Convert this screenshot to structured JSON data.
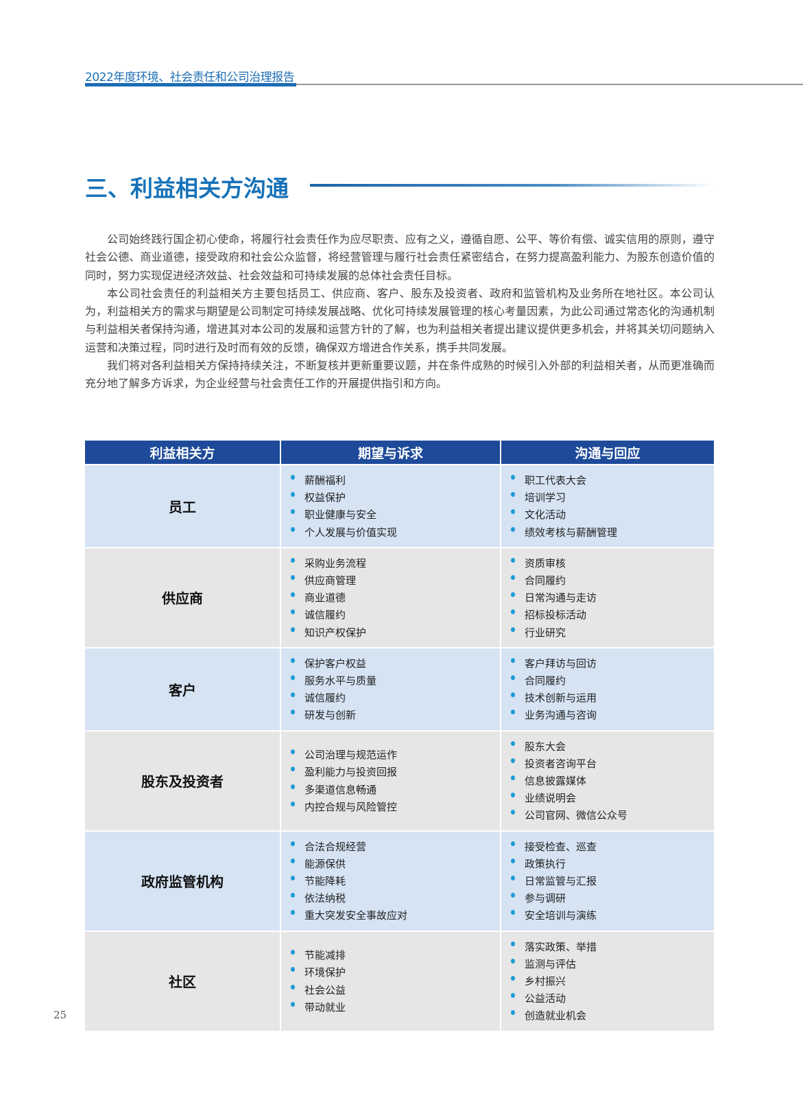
{
  "header": {
    "report_title": "2022年度环境、社会责任和公司治理报告"
  },
  "section_title": "三、利益相关方沟通",
  "paragraphs": [
    "公司始终践行国企初心使命，将履行社会责任作为应尽职责、应有之义，遵循自愿、公平、等价有偿、诚实信用的原则，遵守社会公德、商业道德，接受政府和社会公众监督，将经营管理与履行社会责任紧密结合，在努力提高盈利能力、为股东创造价值的同时，努力实现促进经济效益、社会效益和可持续发展的总体社会责任目标。",
    "本公司社会责任的利益相关方主要包括员工、供应商、客户、股东及投资者、政府和监管机构及业务所在地社区。本公司认为，利益相关方的需求与期望是公司制定可持续发展战略、优化可持续发展管理的核心考量因素，为此公司通过常态化的沟通机制与利益相关者保持沟通，增进其对本公司的发展和运营方针的了解，也为利益相关者提出建议提供更多机会，并将其关切问题纳入运营和决策过程，同时进行及时而有效的反馈，确保双方增进合作关系，携手共同发展。",
    "我们将对各利益相关方保持持续关注，不断复核并更新重要议题，并在条件成熟的时候引入外部的利益相关者，从而更准确而充分地了解多方诉求，为企业经营与社会责任工作的开展提供指引和方向。"
  ],
  "table": {
    "headers": [
      "利益相关方",
      "期望与诉求",
      "沟通与回应"
    ],
    "rows": [
      {
        "stakeholder": "员工",
        "expectations": [
          "薪酬福利",
          "权益保护",
          "职业健康与安全",
          "个人发展与价值实现"
        ],
        "responses": [
          "职工代表大会",
          "培训学习",
          "文化活动",
          "绩效考核与薪酬管理"
        ]
      },
      {
        "stakeholder": "供应商",
        "expectations": [
          "采购业务流程",
          "供应商管理",
          "商业道德",
          "诚信履约",
          "知识产权保护"
        ],
        "responses": [
          "资质审核",
          "合同履约",
          "日常沟通与走访",
          "招标投标活动",
          "行业研究"
        ]
      },
      {
        "stakeholder": "客户",
        "expectations": [
          "保护客户权益",
          "服务水平与质量",
          "诚信履约",
          "研发与创新"
        ],
        "responses": [
          "客户拜访与回访",
          "合同履约",
          "技术创新与运用",
          "业务沟通与咨询"
        ]
      },
      {
        "stakeholder": "股东及投资者",
        "expectations": [
          "公司治理与规范运作",
          "盈利能力与投资回报",
          "多渠道信息畅通",
          "内控合规与风险管控"
        ],
        "responses": [
          "股东大会",
          "投资者咨询平台",
          "信息披露媒体",
          "业绩说明会",
          "公司官网、微信公众号"
        ]
      },
      {
        "stakeholder": "政府监管机构",
        "expectations": [
          "合法合规经营",
          "能源保供",
          "节能降耗",
          "依法纳税",
          "重大突发安全事故应对"
        ],
        "responses": [
          "接受检查、巡查",
          "政策执行",
          "日常监管与汇报",
          "参与调研",
          "安全培训与演练"
        ]
      },
      {
        "stakeholder": "社区",
        "expectations": [
          "节能减排",
          "环境保护",
          "社会公益",
          "带动就业"
        ],
        "responses": [
          "落实政策、举措",
          "监测与评估",
          "乡村振兴",
          "公益活动",
          "创造就业机会"
        ]
      }
    ]
  },
  "page_number": "25",
  "colors": {
    "brand_blue": "#1b6db4",
    "table_header": "#1e4a99",
    "row_blue": "#d5e3f3",
    "row_gray": "#e6e6e6",
    "bullet": "#1b9ad6"
  }
}
